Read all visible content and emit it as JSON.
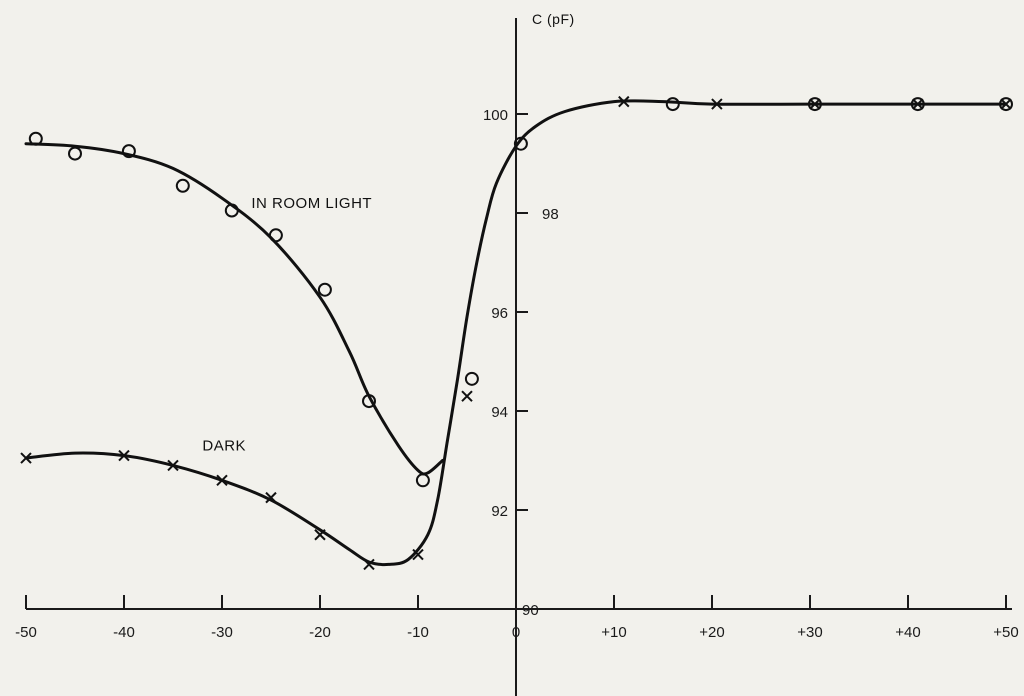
{
  "chart_data": {
    "type": "line",
    "title": "",
    "xlabel": "",
    "ylabel": "C (pF)",
    "xlim": [
      -50,
      50
    ],
    "ylim": [
      90,
      102.5
    ],
    "x_ticks": [
      -50,
      -40,
      -30,
      -20,
      -10,
      0,
      10,
      20,
      30,
      40,
      50
    ],
    "x_tick_labels": [
      "-50",
      "-40",
      "-30",
      "-20",
      "-10",
      "0",
      "+10",
      "+20",
      "+30",
      "+40",
      "+50"
    ],
    "y_ticks": [
      90,
      92,
      94,
      96,
      98,
      100
    ],
    "y_tick_labels": [
      "90",
      "92",
      "94",
      "96",
      "98",
      "100"
    ],
    "grid": false,
    "legend": "none",
    "annotations": [
      {
        "text": "IN ROOM LIGHT",
        "x": -27,
        "y": 98.1
      },
      {
        "text": "DARK",
        "x": -32,
        "y": 93.2
      }
    ],
    "series": [
      {
        "name": "IN ROOM LIGHT",
        "marker": "circle",
        "points": [
          [
            -49,
            99.5
          ],
          [
            -45,
            99.2
          ],
          [
            -39.5,
            99.25
          ],
          [
            -34,
            98.55
          ],
          [
            -29,
            98.05
          ],
          [
            -24.5,
            97.55
          ],
          [
            -19.5,
            96.45
          ],
          [
            -15,
            94.2
          ],
          [
            -9.5,
            92.6
          ],
          [
            -4.5,
            94.65
          ],
          [
            0.5,
            99.4
          ],
          [
            16,
            100.2
          ],
          [
            30.5,
            100.2
          ],
          [
            41,
            100.2
          ],
          [
            50,
            100.2
          ]
        ],
        "curve": [
          [
            -50,
            99.4
          ],
          [
            -45,
            99.35
          ],
          [
            -40,
            99.2
          ],
          [
            -35,
            98.9
          ],
          [
            -30,
            98.3
          ],
          [
            -25,
            97.5
          ],
          [
            -20,
            96.3
          ],
          [
            -17,
            95.2
          ],
          [
            -15,
            94.3
          ],
          [
            -12,
            93.3
          ],
          [
            -10,
            92.8
          ],
          [
            -9,
            92.75
          ],
          [
            -7.5,
            93.0
          ]
        ]
      },
      {
        "name": "DARK",
        "marker": "x",
        "points": [
          [
            -50,
            93.05
          ],
          [
            -40,
            93.1
          ],
          [
            -35,
            92.9
          ],
          [
            -30,
            92.6
          ],
          [
            -25,
            92.25
          ],
          [
            -20,
            91.5
          ],
          [
            -15,
            90.9
          ],
          [
            -10,
            91.1
          ],
          [
            -5,
            94.3
          ],
          [
            11,
            100.25
          ],
          [
            20.5,
            100.2
          ],
          [
            30.5,
            100.2
          ],
          [
            41,
            100.2
          ],
          [
            50,
            100.2
          ]
        ],
        "curve": [
          [
            -50,
            93.05
          ],
          [
            -45,
            93.15
          ],
          [
            -40,
            93.1
          ],
          [
            -35,
            92.9
          ],
          [
            -30,
            92.6
          ],
          [
            -25,
            92.2
          ],
          [
            -20,
            91.6
          ],
          [
            -17,
            91.2
          ],
          [
            -15,
            90.95
          ],
          [
            -13,
            90.9
          ],
          [
            -11,
            91.0
          ],
          [
            -9,
            91.5
          ],
          [
            -8,
            92.2
          ],
          [
            -7,
            93.4
          ],
          [
            -6,
            94.6
          ],
          [
            -5,
            95.9
          ],
          [
            -4,
            97.0
          ],
          [
            -3,
            97.9
          ],
          [
            -2,
            98.6
          ],
          [
            0,
            99.35
          ],
          [
            2,
            99.75
          ],
          [
            5,
            100.05
          ],
          [
            10,
            100.25
          ],
          [
            15,
            100.25
          ],
          [
            20,
            100.2
          ],
          [
            30,
            100.2
          ],
          [
            40,
            100.2
          ],
          [
            50,
            100.2
          ]
        ]
      }
    ]
  }
}
